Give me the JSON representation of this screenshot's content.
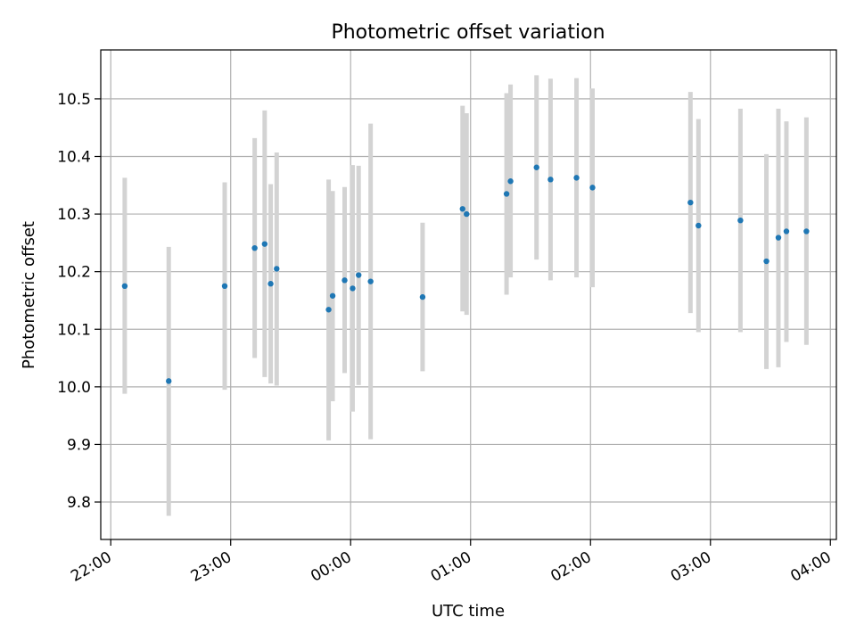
{
  "chart_data": {
    "type": "scatter",
    "title": "Photometric offset variation",
    "xlabel": "UTC time",
    "ylabel": "Photometric offset",
    "xaxis_type": "time",
    "xlim": [
      "21:55",
      "04:03"
    ],
    "ylim": [
      9.735,
      10.585
    ],
    "xticks": [
      "22:00",
      "23:00",
      "00:00",
      "01:00",
      "02:00",
      "03:00",
      "04:00"
    ],
    "yticks": [
      "9.8",
      "9.9",
      "10.0",
      "10.1",
      "10.2",
      "10.3",
      "10.4",
      "10.5"
    ],
    "grid": true,
    "legend": "none",
    "marker_color": "#1f77b4",
    "errorbar_color": "#d3d3d3",
    "points": [
      {
        "x": "22:07",
        "y": 10.175,
        "ylow": 9.988,
        "yhigh": 10.363
      },
      {
        "x": "22:29",
        "y": 10.01,
        "ylow": 9.776,
        "yhigh": 10.243
      },
      {
        "x": "22:57",
        "y": 10.175,
        "ylow": 9.995,
        "yhigh": 10.355
      },
      {
        "x": "23:12",
        "y": 10.241,
        "ylow": 10.05,
        "yhigh": 10.432
      },
      {
        "x": "23:17",
        "y": 10.248,
        "ylow": 10.017,
        "yhigh": 10.48
      },
      {
        "x": "23:20",
        "y": 10.179,
        "ylow": 10.006,
        "yhigh": 10.352
      },
      {
        "x": "23:23",
        "y": 10.205,
        "ylow": 10.002,
        "yhigh": 10.407
      },
      {
        "x": "23:49",
        "y": 10.134,
        "ylow": 9.907,
        "yhigh": 10.36
      },
      {
        "x": "23:51",
        "y": 10.158,
        "ylow": 9.975,
        "yhigh": 10.34
      },
      {
        "x": "23:57",
        "y": 10.185,
        "ylow": 10.024,
        "yhigh": 10.347
      },
      {
        "x": "00:01",
        "y": 10.171,
        "ylow": 9.957,
        "yhigh": 10.385
      },
      {
        "x": "00:04",
        "y": 10.194,
        "ylow": 10.003,
        "yhigh": 10.384
      },
      {
        "x": "00:10",
        "y": 10.183,
        "ylow": 9.909,
        "yhigh": 10.457
      },
      {
        "x": "00:36",
        "y": 10.156,
        "ylow": 10.027,
        "yhigh": 10.285
      },
      {
        "x": "00:56",
        "y": 10.309,
        "ylow": 10.131,
        "yhigh": 10.488
      },
      {
        "x": "00:58",
        "y": 10.3,
        "ylow": 10.125,
        "yhigh": 10.475
      },
      {
        "x": "01:18",
        "y": 10.335,
        "ylow": 10.16,
        "yhigh": 10.51
      },
      {
        "x": "01:20",
        "y": 10.357,
        "ylow": 10.19,
        "yhigh": 10.525
      },
      {
        "x": "01:33",
        "y": 10.381,
        "ylow": 10.221,
        "yhigh": 10.541
      },
      {
        "x": "01:40",
        "y": 10.36,
        "ylow": 10.185,
        "yhigh": 10.535
      },
      {
        "x": "01:53",
        "y": 10.363,
        "ylow": 10.19,
        "yhigh": 10.536
      },
      {
        "x": "02:01",
        "y": 10.346,
        "ylow": 10.173,
        "yhigh": 10.518
      },
      {
        "x": "02:50",
        "y": 10.32,
        "ylow": 10.128,
        "yhigh": 10.512
      },
      {
        "x": "02:54",
        "y": 10.28,
        "ylow": 10.095,
        "yhigh": 10.465
      },
      {
        "x": "03:15",
        "y": 10.289,
        "ylow": 10.095,
        "yhigh": 10.483
      },
      {
        "x": "03:28",
        "y": 10.218,
        "ylow": 10.031,
        "yhigh": 10.404
      },
      {
        "x": "03:34",
        "y": 10.259,
        "ylow": 10.034,
        "yhigh": 10.483
      },
      {
        "x": "03:38",
        "y": 10.27,
        "ylow": 10.078,
        "yhigh": 10.461
      },
      {
        "x": "03:48",
        "y": 10.27,
        "ylow": 10.073,
        "yhigh": 10.468
      }
    ]
  }
}
